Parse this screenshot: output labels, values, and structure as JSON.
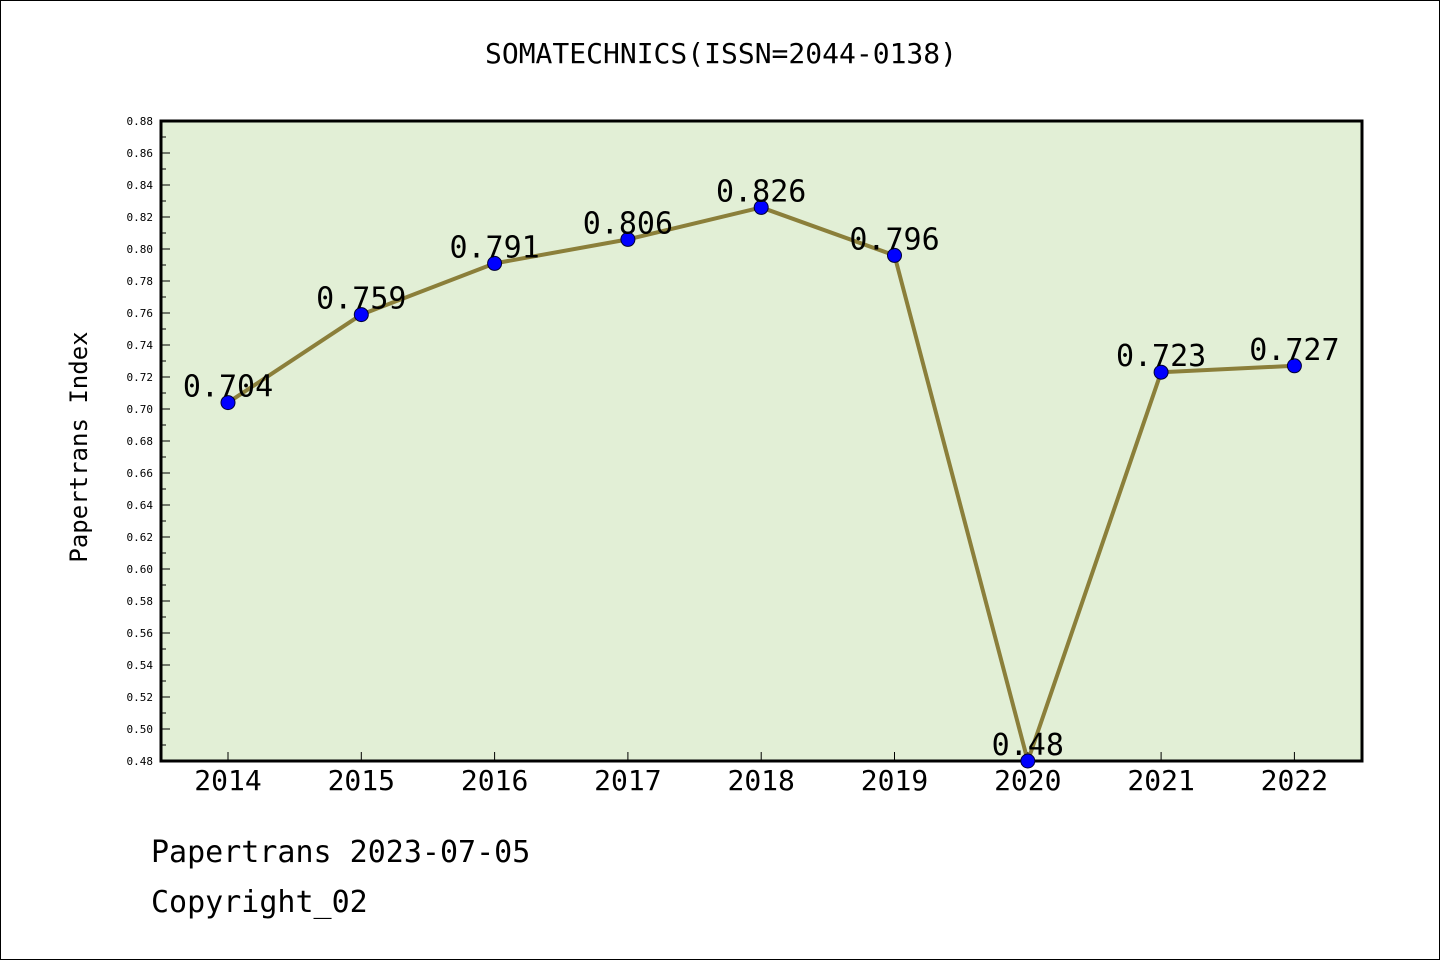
{
  "chart_data": {
    "type": "line",
    "title": "SOMATECHNICS(ISSN=2044-0138)",
    "xlabel": "",
    "ylabel": "Papertrans Index",
    "categories": [
      "2014",
      "2015",
      "2016",
      "2017",
      "2018",
      "2019",
      "2020",
      "2021",
      "2022"
    ],
    "values": [
      0.704,
      0.759,
      0.791,
      0.806,
      0.826,
      0.796,
      0.48,
      0.723,
      0.727
    ],
    "data_labels": [
      "0.704",
      "0.759",
      "0.791",
      "0.806",
      "0.826",
      "0.796",
      "0.48",
      "0.723",
      "0.727"
    ],
    "ylim": [
      0.48,
      0.88
    ],
    "ytick_step": 0.02,
    "grid": false,
    "legend": "none",
    "colors": {
      "plot_background": "#e2efd6",
      "line": "#8b7f3a",
      "marker": "#0000ff"
    }
  },
  "footer": {
    "line1": "Papertrans 2023-07-05",
    "line2": "Copyright_02"
  }
}
